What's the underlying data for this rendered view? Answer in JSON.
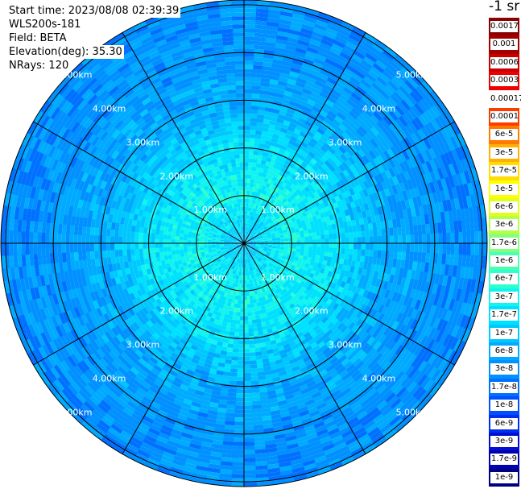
{
  "header": {
    "start_time": "Start time: 2023/08/08 02:39:39",
    "instrument": "WLS200s-181",
    "field": "Field: BETA",
    "elevation": "Elevation(deg): 35.30",
    "nrays": "NRays: 120"
  },
  "chart_data": {
    "type": "heatmap",
    "projection": "polar (PPI scan)",
    "range_rings": [
      "1.00km",
      "2.00km",
      "3.00km",
      "4.00km",
      "5.00km"
    ],
    "range_values_km": [
      1,
      2,
      3,
      4,
      5
    ],
    "max_range_km": 5.1,
    "spokes_deg": [
      0,
      30,
      60,
      90,
      120,
      150,
      180,
      210,
      240,
      270,
      300,
      330
    ],
    "colorbar_unit": "-1 sr",
    "colorbar_scale": "log",
    "colorbar_ticks": [
      "0.0017",
      "0.001",
      "0.0006",
      "0.0003",
      "0.00017",
      "0.0001",
      "6e-5",
      "3e-5",
      "1.7e-5",
      "1e-5",
      "6e-6",
      "3e-6",
      "1.7e-6",
      "1e-6",
      "6e-7",
      "3e-7",
      "1.7e-7",
      "1e-7",
      "6e-8",
      "3e-8",
      "1.7e-8",
      "1e-8",
      "6e-9",
      "3e-9",
      "1.7e-9",
      "1e-9"
    ],
    "colorbar_colors": [
      "#8b0000",
      "#a50000",
      "#c80000",
      "#ee0000",
      "#ffffff",
      "#ff3c00",
      "#ff7a00",
      "#ffb000",
      "#ffdd00",
      "#ffff00",
      "#e0ff1e",
      "#b4ff4a",
      "#80ff80",
      "#4cffb0",
      "#2cffd0",
      "#14f4ee",
      "#00e0ff",
      "#00c8ff",
      "#00aaff",
      "#0090ff",
      "#0070ff",
      "#0050ff",
      "#0030ee",
      "#0010d0",
      "#0000b0",
      "#000080"
    ],
    "gap_cell": 4,
    "dominant_profile": [
      {
        "range_km": 0.0,
        "value": "1e-7"
      },
      {
        "range_km": 1.0,
        "value": "3e-7"
      },
      {
        "range_km": 2.0,
        "value": "1.7e-7"
      },
      {
        "range_km": 3.0,
        "value": "6e-8"
      },
      {
        "range_km": 4.5,
        "value": "3e-8"
      }
    ]
  }
}
